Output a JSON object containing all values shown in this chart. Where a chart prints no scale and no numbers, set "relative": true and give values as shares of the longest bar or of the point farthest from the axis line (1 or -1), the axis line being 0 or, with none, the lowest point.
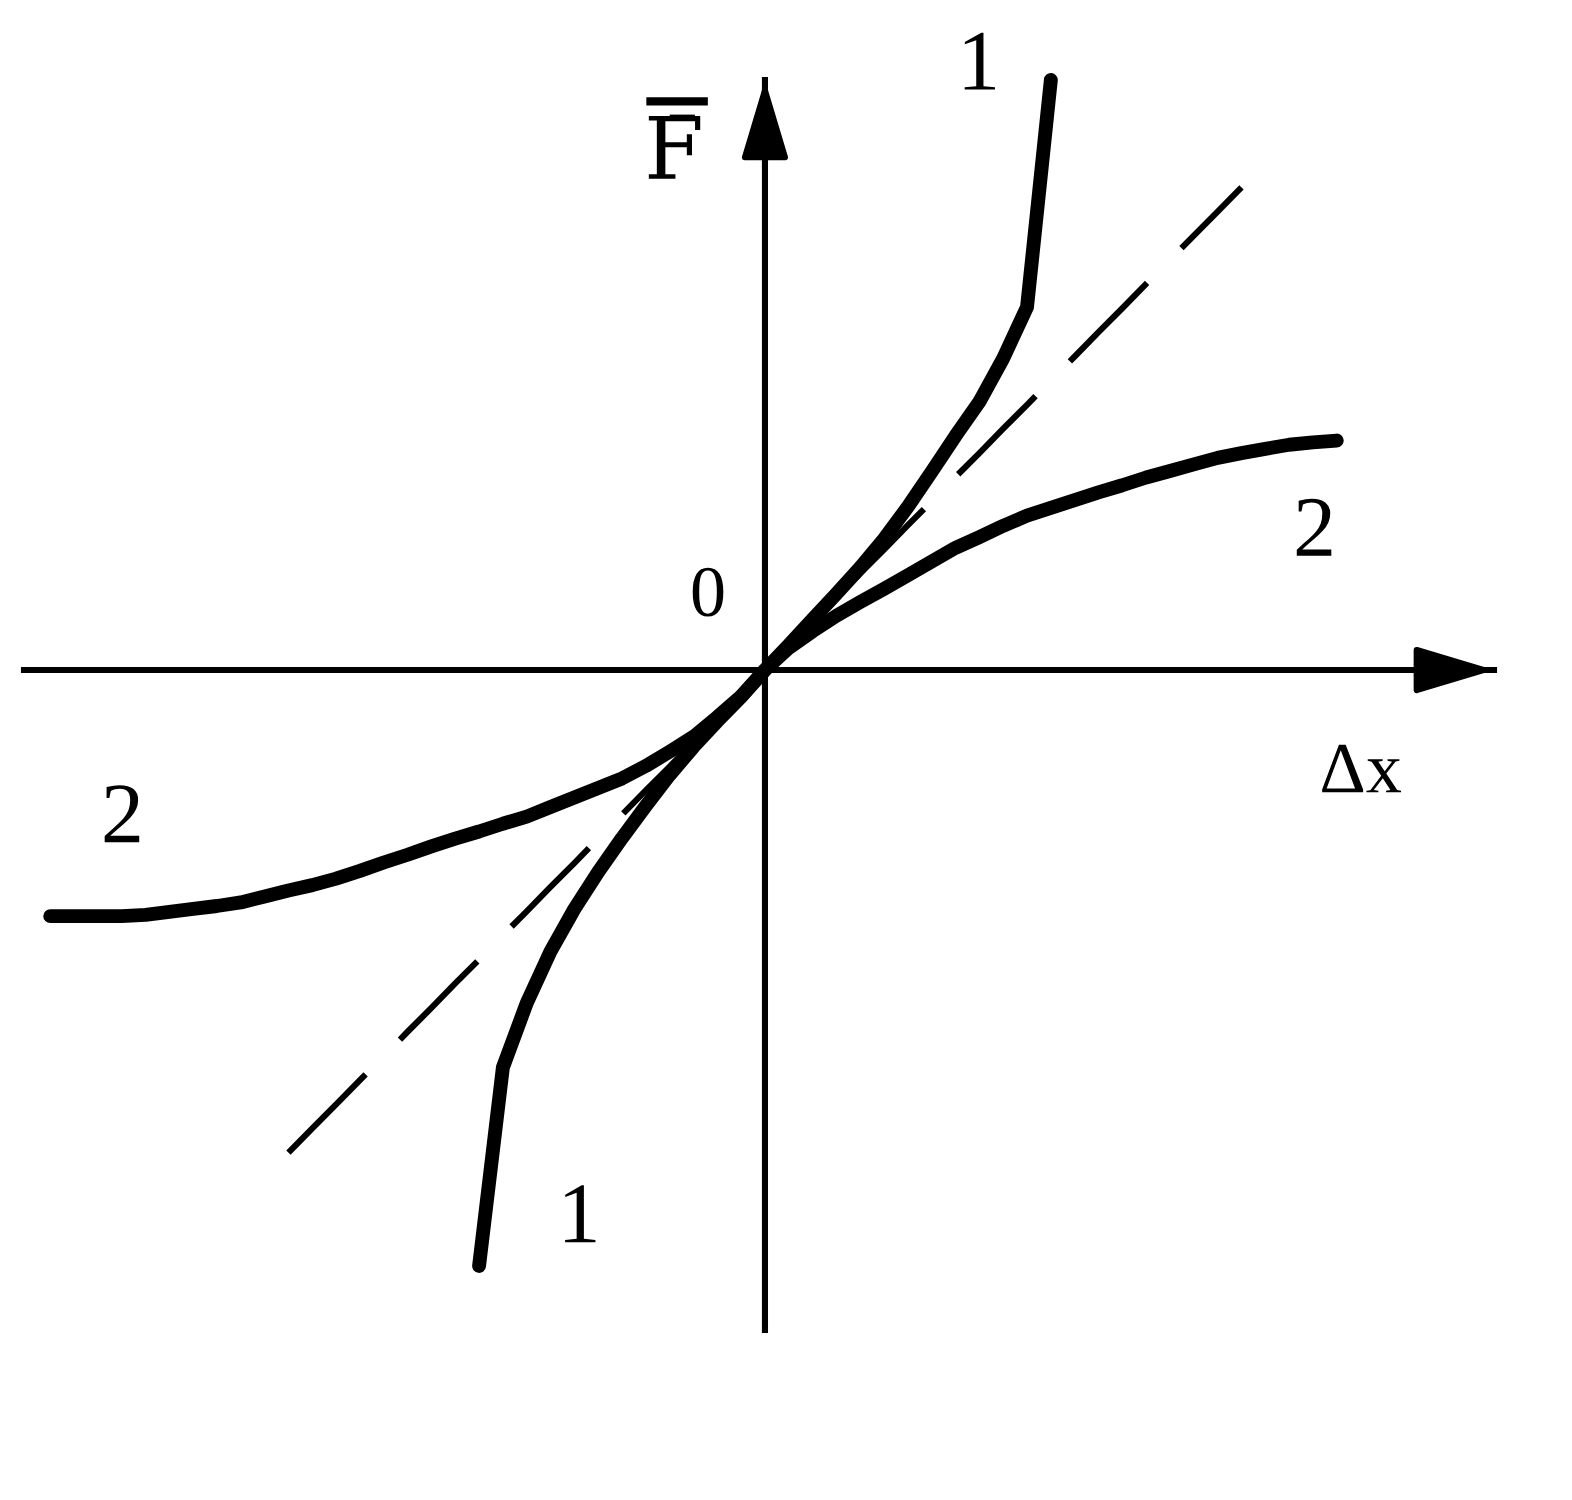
{
  "chart_data": {
    "type": "line",
    "relative": true,
    "xlabel": "Δx",
    "ylabel": "F̄",
    "annotations": [
      "0"
    ],
    "categories": [
      null,
      null,
      null,
      null,
      null,
      null,
      null,
      null,
      null,
      null,
      null,
      null,
      null,
      null,
      null,
      null,
      null,
      null,
      null,
      null,
      null,
      null,
      null,
      null,
      null,
      null,
      null,
      null,
      null,
      null,
      null,
      null,
      null,
      null,
      null,
      null,
      null,
      null,
      null,
      null,
      null,
      null,
      null,
      null,
      null,
      null,
      null,
      null,
      null,
      null,
      null,
      null,
      null,
      null,
      null
    ],
    "series": [
      {
        "name": "1",
        "color": "#000000",
        "line_style": "solid",
        "values": [
          null,
          null,
          null,
          null,
          null,
          null,
          null,
          null,
          null,
          null,
          null,
          null,
          null,
          null,
          null,
          null,
          null,
          null,
          -1.0,
          -0.667,
          -0.559,
          -0.472,
          -0.401,
          -0.339,
          -0.282,
          -0.228,
          -0.176,
          -0.129,
          -0.086,
          -0.045,
          0,
          0.042,
          0.085,
          0.128,
          0.172,
          0.22,
          0.274,
          0.333,
          0.393,
          0.45,
          0.523,
          0.609,
          0.99,
          null,
          null,
          null,
          null,
          null,
          null,
          null,
          null,
          null,
          null,
          null,
          null
        ]
      },
      {
        "name": "2",
        "color": "#000000",
        "line_style": "solid",
        "values": [
          -0.413,
          -0.413,
          -0.413,
          -0.413,
          -0.411,
          -0.406,
          -0.401,
          -0.396,
          -0.39,
          -0.38,
          -0.37,
          -0.361,
          -0.35,
          -0.337,
          -0.323,
          -0.31,
          -0.296,
          -0.283,
          -0.271,
          -0.258,
          -0.246,
          -0.23,
          -0.214,
          -0.198,
          -0.182,
          -0.161,
          -0.137,
          -0.112,
          -0.079,
          -0.044,
          0,
          0.037,
          0.065,
          0.091,
          0.114,
          0.136,
          0.159,
          0.182,
          0.205,
          0.223,
          0.242,
          0.259,
          0.272,
          0.285,
          0.298,
          0.31,
          0.323,
          0.334,
          0.345,
          0.356,
          0.364,
          0.371,
          0.378,
          0.382,
          0.385
        ]
      },
      {
        "color": "#000000",
        "line_style": "dashed",
        "values": [
          null,
          null,
          null,
          null,
          null,
          null,
          null,
          null,
          null,
          null,
          -0.81,
          -0.769,
          -0.729,
          -0.688,
          -0.648,
          -0.607,
          -0.567,
          -0.526,
          -0.486,
          -0.445,
          -0.405,
          -0.364,
          -0.324,
          -0.283,
          -0.243,
          -0.202,
          -0.162,
          -0.121,
          -0.081,
          -0.04,
          0,
          0.04,
          0.081,
          0.121,
          0.162,
          0.202,
          0.243,
          0.283,
          0.324,
          0.364,
          0.405,
          0.445,
          0.486,
          0.526,
          0.567,
          0.607,
          0.648,
          0.688,
          0.729,
          0.769,
          0.81,
          null,
          null,
          null,
          null
        ]
      }
    ]
  }
}
